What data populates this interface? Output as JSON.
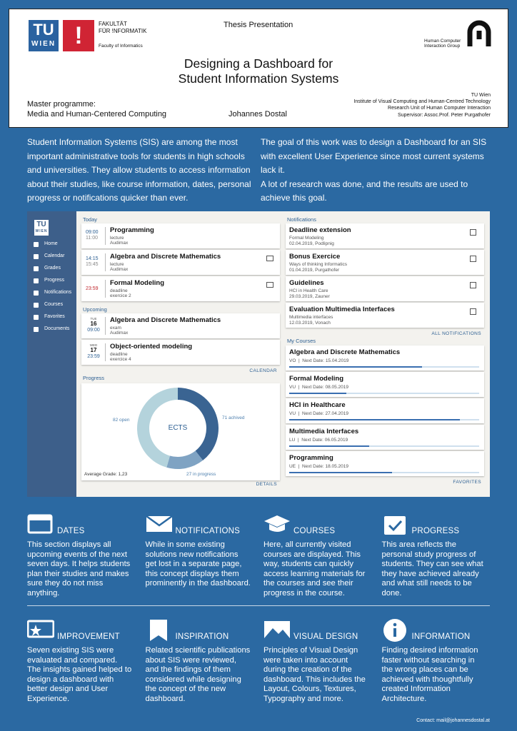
{
  "header": {
    "thesis": "Thesis Presentation",
    "logo_tu": "TU",
    "logo_wien": "WIEN",
    "faculty_line1": "FAKULTÄT",
    "faculty_line2": "FÜR !NFORMATIK",
    "faculty_en": "Faculty of Informatics",
    "hci_line1": "Human Computer",
    "hci_line2": "Interaction Group",
    "title_line1": "Designing a Dashboard for",
    "title_line2": "Student Information Systems",
    "programme_label": "Master programme:",
    "programme": "Media and Human-Centered Computing",
    "author": "Johannes Dostal",
    "affiliation": [
      "TU Wien",
      "Institute of Visual Computing and Human-Centred Technology",
      "Research Unit of Human Computer Interaction",
      "Supervisor: Assoc.Prof. Peter Purgathofer"
    ]
  },
  "intro": {
    "left": [
      "Student Information Systems (SIS) are among the most important administrative tools for students in high schools and universities. They allow students to access information about their studies, like course information, dates, personal progress or notifications quicker than ever."
    ],
    "right": [
      "The goal of this work was to design a Dashboard for an SIS with excellent User Experience since most current systems lack it.",
      "A lot of research was done, and the results are used to achieve this goal."
    ]
  },
  "dashboard": {
    "logo_tu": "TU",
    "logo_wien": "WIEN",
    "nav": [
      "Home",
      "Calendar",
      "Grades",
      "Progress",
      "Notifications",
      "Courses",
      "Favorites",
      "Documents"
    ],
    "today": {
      "heading": "Today",
      "items": [
        {
          "times": [
            "09:00",
            "11:00"
          ],
          "title": "Programming",
          "lines": [
            "lecture",
            "Audimax"
          ]
        },
        {
          "times": [
            "14:15",
            "15:45"
          ],
          "title": "Algebra and Discrete Mathematics",
          "lines": [
            "lecture",
            "Audimax"
          ]
        },
        {
          "times": [
            "23:59"
          ],
          "title": "Formal Modeling",
          "lines": [
            "deadline",
            "exercice 2"
          ]
        }
      ]
    },
    "upcoming": {
      "heading": "Upcoming",
      "items": [
        {
          "day": "TUE",
          "date": "16",
          "time": "09:00",
          "title": "Algebra and Discrete Mathematics",
          "lines": [
            "exam",
            "Audimax"
          ]
        },
        {
          "day": "WED",
          "date": "17",
          "time": "23:59",
          "title": "Object-oriented modeling",
          "lines": [
            "deadline",
            "exercice 4"
          ]
        }
      ],
      "link": "CALENDAR"
    },
    "progress": {
      "heading": "Progress",
      "center": "ECTS",
      "segments": [
        {
          "value": 71,
          "label": "71 achived",
          "color": "#3a6492"
        },
        {
          "value": 27,
          "label": "27 in progress",
          "color": "#7fa3c3"
        },
        {
          "value": 82,
          "label": "82 open",
          "color": "#b4d3dc"
        }
      ],
      "average": "Average Grade: 1,23",
      "link": "DETAILS"
    },
    "notifications": {
      "heading": "Notifications",
      "items": [
        {
          "title": "Deadline extension",
          "lines": [
            "Formal Modeling",
            "02.04.2019, Podlipnig"
          ]
        },
        {
          "title": "Bonus Exercice",
          "lines": [
            "Ways of thinking Informatics",
            "01.04.2019, Purgathofer"
          ]
        },
        {
          "title": "Guidelines",
          "lines": [
            "HCI in Health Care",
            "29.03.2019, Zauner"
          ]
        },
        {
          "title": "Evaluation Multimedia Interfaces",
          "lines": [
            "Multimedia interfaces",
            "12.03.2019, Vonach"
          ]
        }
      ],
      "link": "ALL NOTIFICATIONS"
    },
    "courses": {
      "heading": "My Courses",
      "items": [
        {
          "title": "Algebra and Discrete Mathematics",
          "info": "VO  |  Next Date: 15.04.2019",
          "progress": 0.7
        },
        {
          "title": "Formal Modeling",
          "info": "VU  |  Next Date: 08.05.2019",
          "progress": 0.3
        },
        {
          "title": "HCI in Healthcare",
          "info": "VU  |  Next Date: 27.04.2019",
          "progress": 0.9
        },
        {
          "title": "Multimedia Interfaces",
          "info": "LU  |  Next Date: 06.05.2019",
          "progress": 0.42
        },
        {
          "title": "Programming",
          "info": "UE  |  Next Date: 18.05.2019",
          "progress": 0.54
        }
      ],
      "link": "FAVORITES"
    }
  },
  "features": [
    {
      "title": "DATES",
      "text": "This section displays all upcoming events of the next seven days. It helps students plan their studies and makes sure they do not miss anything."
    },
    {
      "title": "NOTIFICATIONS",
      "text": "While in some existing solutions new notifications get lost in a separate page, this concept displays them prominently in the dashboard."
    },
    {
      "title": "COURSES",
      "text": "Here, all currently visited courses are displayed. This way, students can quickly access learning materials for the courses and see their progress in the course."
    },
    {
      "title": "PROGRESS",
      "text": "This area reflects the personal study progress of students. They can see what they have achieved already and what still needs to be done."
    },
    {
      "title": "IMPROVEMENT",
      "text": "Seven existing SIS were evaluated and compared. The insights gained helped to design a dashboard with better design and User Experience."
    },
    {
      "title": "INSPIRATION",
      "text": "Related scientific publications about SIS were reviewed, and the findings of them considered while designing the concept of the new dashboard."
    },
    {
      "title": "VISUAL DESIGN",
      "text": "Principles of Visual Design were taken into account during the creation of the dashboard. This includes the Layout, Colours, Textures, Typography and more."
    },
    {
      "title": "INFORMATION",
      "text": "Finding desired information faster without searching in the wrong places can be achieved with thoughtfully created Information Architecture."
    }
  ],
  "contact": "Contact: mail@johannesdostal.at"
}
